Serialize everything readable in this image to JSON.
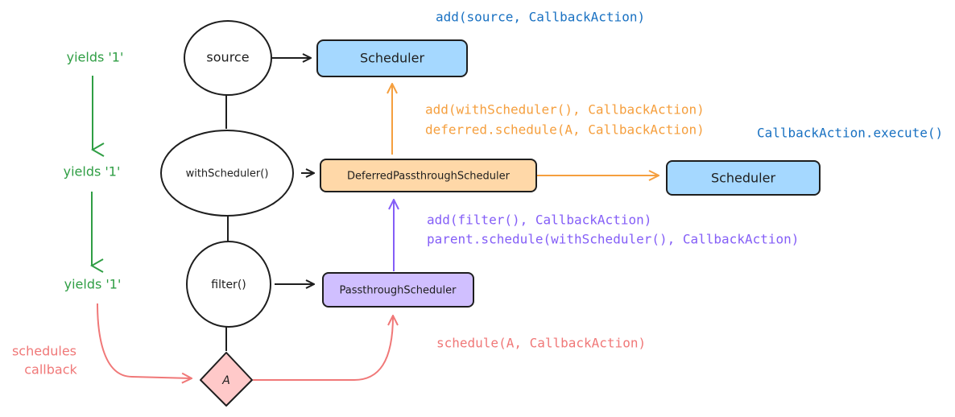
{
  "nodes": {
    "source": "source",
    "with_scheduler": "withScheduler()",
    "filter": "filter()",
    "action": "A"
  },
  "boxes": {
    "scheduler_top": "Scheduler",
    "deferred": "DeferredPassthroughScheduler",
    "scheduler_right": "Scheduler",
    "passthrough": "PassthroughScheduler"
  },
  "yields": [
    "yields '1'",
    "yields '1'",
    "yields '1'"
  ],
  "notes": {
    "schedules_callback_line1": "schedules",
    "schedules_callback_line2": "callback",
    "add_source": "add(source, CallbackAction)",
    "add_with_scheduler": "add(withScheduler(), CallbackAction)",
    "deferred_schedule": "deferred.schedule(A, CallbackAction)",
    "execute": "CallbackAction.execute()",
    "add_filter": "add(filter(), CallbackAction)",
    "parent_schedule": "parent.schedule(withScheduler(), CallbackAction)",
    "schedule_a": "schedule(A, CallbackAction)"
  },
  "colors": {
    "green": "#2f9e44",
    "blue": "#1971c2",
    "orange": "#f59f3e",
    "purple": "#845ef7",
    "red": "#f07878",
    "scheduler_fill": "#a5d8ff",
    "deferred_fill": "#ffd8a8",
    "passthrough_fill": "#d0bfff",
    "action_fill": "#ffc9c9"
  }
}
